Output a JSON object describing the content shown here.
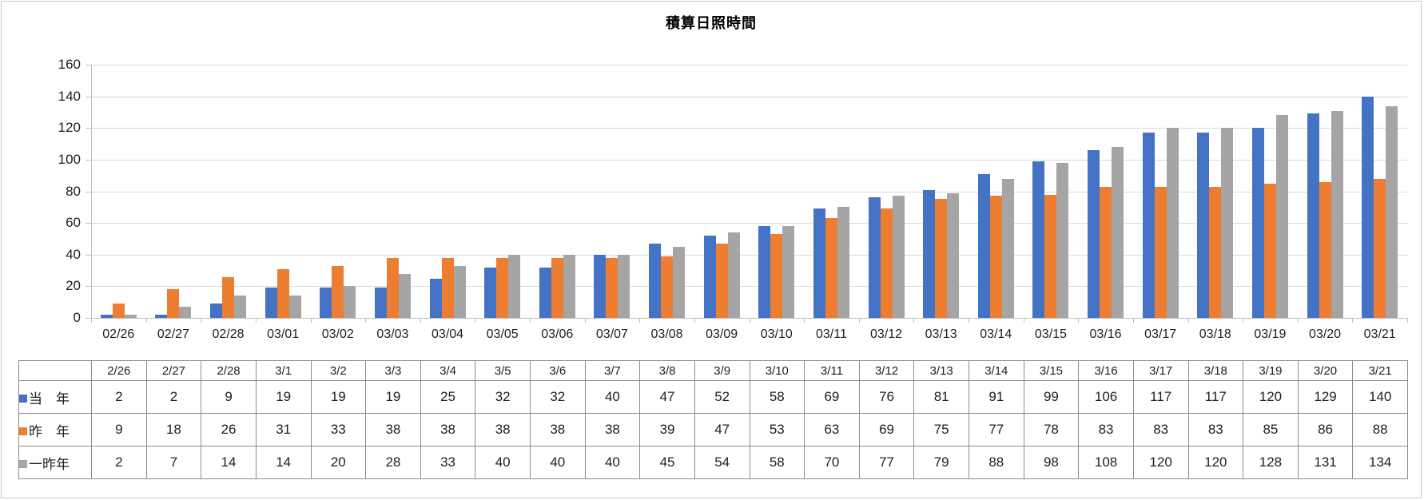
{
  "chart_data": {
    "type": "bar",
    "title": "積算日照時間",
    "categories": [
      "02/26",
      "02/27",
      "02/28",
      "03/01",
      "03/02",
      "03/03",
      "03/04",
      "03/05",
      "03/06",
      "03/07",
      "03/08",
      "03/09",
      "03/10",
      "03/11",
      "03/12",
      "03/13",
      "03/14",
      "03/15",
      "03/16",
      "03/17",
      "03/18",
      "03/19",
      "03/20",
      "03/21"
    ],
    "series": [
      {
        "name": "当　年",
        "color": "#4472C4",
        "values": [
          2,
          2,
          9,
          19,
          19,
          19,
          25,
          32,
          32,
          40,
          47,
          52,
          58,
          69,
          76,
          81,
          91,
          99,
          106,
          117,
          117,
          120,
          129,
          140
        ]
      },
      {
        "name": "昨　年",
        "color": "#ED7D31",
        "values": [
          9,
          18,
          26,
          31,
          33,
          38,
          38,
          38,
          38,
          38,
          39,
          47,
          53,
          63,
          69,
          75,
          77,
          78,
          83,
          83,
          83,
          85,
          86,
          88
        ]
      },
      {
        "name": "一昨年",
        "color": "#A5A5A5",
        "values": [
          2,
          7,
          14,
          14,
          20,
          28,
          33,
          40,
          40,
          40,
          45,
          54,
          58,
          70,
          77,
          79,
          88,
          98,
          108,
          120,
          120,
          128,
          131,
          134
        ]
      }
    ],
    "ylim": [
      0,
      160
    ],
    "yticks": [
      0,
      20,
      40,
      60,
      80,
      100,
      120,
      140,
      160
    ],
    "grid": true,
    "legend_position": "table-row-labels"
  },
  "data_table": {
    "column_headers": [
      "2/26",
      "2/27",
      "2/28",
      "3/1",
      "3/2",
      "3/3",
      "3/4",
      "3/5",
      "3/6",
      "3/7",
      "3/8",
      "3/9",
      "3/10",
      "3/11",
      "3/12",
      "3/13",
      "3/14",
      "3/15",
      "3/16",
      "3/17",
      "3/18",
      "3/19",
      "3/20",
      "3/21"
    ],
    "rows": [
      {
        "label": "当　年",
        "swatch_color": "#4472C4",
        "values": [
          2,
          2,
          9,
          19,
          19,
          19,
          25,
          32,
          32,
          40,
          47,
          52,
          58,
          69,
          76,
          81,
          91,
          99,
          106,
          117,
          117,
          120,
          129,
          140
        ]
      },
      {
        "label": "昨　年",
        "swatch_color": "#ED7D31",
        "values": [
          9,
          18,
          26,
          31,
          33,
          38,
          38,
          38,
          38,
          38,
          39,
          47,
          53,
          63,
          69,
          75,
          77,
          78,
          83,
          83,
          83,
          85,
          86,
          88
        ]
      },
      {
        "label": "一昨年",
        "swatch_color": "#A5A5A5",
        "values": [
          2,
          7,
          14,
          14,
          20,
          28,
          33,
          40,
          40,
          40,
          45,
          54,
          58,
          70,
          77,
          79,
          88,
          98,
          108,
          120,
          120,
          128,
          131,
          134
        ]
      }
    ]
  },
  "colors": {
    "axis_line": "#BFBFBF",
    "gridline": "#D9D9D9",
    "table_border": "#8C8C8C",
    "text": "#1F1F1F"
  }
}
